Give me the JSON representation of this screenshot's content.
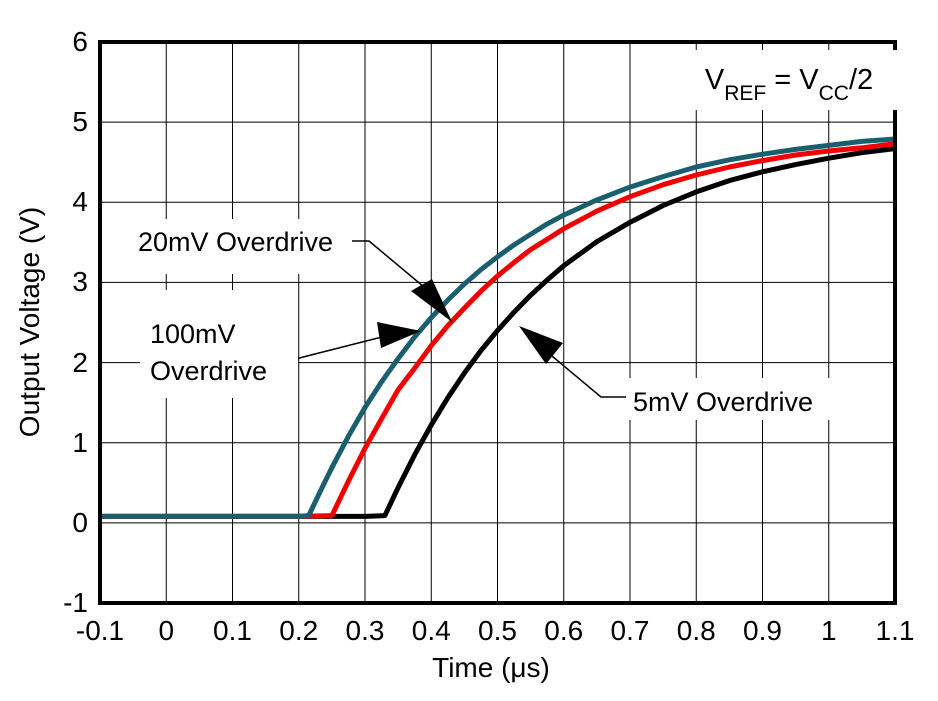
{
  "chart_data": {
    "type": "line",
    "title": "",
    "xlabel": "Time (μs)",
    "ylabel": "Output Voltage (V)",
    "xlim": [
      -0.1,
      1.1
    ],
    "ylim": [
      -1,
      6
    ],
    "x_ticks": [
      -0.1,
      0,
      0.1,
      0.2,
      0.3,
      0.4,
      0.5,
      0.6,
      0.7,
      0.8,
      0.9,
      1,
      1.1
    ],
    "x_tick_labels": [
      "-0.1",
      "0",
      "0.1",
      "0.2",
      "0.3",
      "0.4",
      "0.5",
      "0.6",
      "0.7",
      "0.8",
      "0.9",
      "1",
      "1.1"
    ],
    "y_ticks": [
      6,
      5,
      4,
      3,
      2,
      1,
      0,
      -1
    ],
    "y_tick_labels": [
      "6",
      "5",
      "4",
      "3",
      "2",
      "1",
      "0",
      "-1"
    ],
    "grid": true,
    "frame_color": "#000000",
    "grid_color": "#000000",
    "draw_order_note": "series listed bottom-to-top",
    "series": [
      {
        "name": "5mV Overdrive",
        "color": "#000000",
        "points": [
          [
            -0.1,
            0.08
          ],
          [
            0,
            0.08
          ],
          [
            0.1,
            0.08
          ],
          [
            0.2,
            0.08
          ],
          [
            0.3,
            0.08
          ],
          [
            0.33,
            0.09
          ],
          [
            0.35,
            0.44
          ],
          [
            0.375,
            0.85
          ],
          [
            0.4,
            1.22
          ],
          [
            0.425,
            1.56
          ],
          [
            0.45,
            1.87
          ],
          [
            0.475,
            2.15
          ],
          [
            0.5,
            2.4
          ],
          [
            0.525,
            2.63
          ],
          [
            0.55,
            2.84
          ],
          [
            0.575,
            3.03
          ],
          [
            0.6,
            3.21
          ],
          [
            0.65,
            3.51
          ],
          [
            0.7,
            3.75
          ],
          [
            0.75,
            3.96
          ],
          [
            0.8,
            4.13
          ],
          [
            0.85,
            4.27
          ],
          [
            0.9,
            4.38
          ],
          [
            0.95,
            4.47
          ],
          [
            1,
            4.55
          ],
          [
            1.05,
            4.62
          ],
          [
            1.1,
            4.67
          ]
        ]
      },
      {
        "name": "20mV Overdrive",
        "color": "#F20000",
        "points": [
          [
            -0.1,
            0.08
          ],
          [
            0,
            0.08
          ],
          [
            0.1,
            0.08
          ],
          [
            0.2,
            0.08
          ],
          [
            0.25,
            0.09
          ],
          [
            0.275,
            0.52
          ],
          [
            0.3,
            0.93
          ],
          [
            0.325,
            1.3
          ],
          [
            0.35,
            1.66
          ],
          [
            0.375,
            1.93
          ],
          [
            0.4,
            2.21
          ],
          [
            0.425,
            2.46
          ],
          [
            0.45,
            2.68
          ],
          [
            0.475,
            2.89
          ],
          [
            0.5,
            3.08
          ],
          [
            0.525,
            3.25
          ],
          [
            0.55,
            3.41
          ],
          [
            0.575,
            3.54
          ],
          [
            0.6,
            3.67
          ],
          [
            0.65,
            3.89
          ],
          [
            0.7,
            4.07
          ],
          [
            0.75,
            4.22
          ],
          [
            0.8,
            4.34
          ],
          [
            0.85,
            4.44
          ],
          [
            0.9,
            4.52
          ],
          [
            0.95,
            4.59
          ],
          [
            1,
            4.64
          ],
          [
            1.05,
            4.68
          ],
          [
            1.1,
            4.73
          ]
        ]
      },
      {
        "name": "100mV Overdrive",
        "color": "#1A5F6E",
        "points": [
          [
            -0.1,
            0.08
          ],
          [
            0,
            0.08
          ],
          [
            0.1,
            0.08
          ],
          [
            0.2,
            0.08
          ],
          [
            0.215,
            0.09
          ],
          [
            0.2375,
            0.48
          ],
          [
            0.25,
            0.69
          ],
          [
            0.275,
            1.08
          ],
          [
            0.3,
            1.44
          ],
          [
            0.325,
            1.76
          ],
          [
            0.35,
            2.05
          ],
          [
            0.375,
            2.32
          ],
          [
            0.4,
            2.56
          ],
          [
            0.425,
            2.78
          ],
          [
            0.45,
            2.98
          ],
          [
            0.475,
            3.16
          ],
          [
            0.5,
            3.32
          ],
          [
            0.525,
            3.47
          ],
          [
            0.55,
            3.6
          ],
          [
            0.575,
            3.73
          ],
          [
            0.6,
            3.84
          ],
          [
            0.65,
            4.03
          ],
          [
            0.7,
            4.19
          ],
          [
            0.75,
            4.32
          ],
          [
            0.8,
            4.44
          ],
          [
            0.85,
            4.53
          ],
          [
            0.9,
            4.6
          ],
          [
            0.95,
            4.66
          ],
          [
            1,
            4.71
          ],
          [
            1.05,
            4.76
          ],
          [
            1.1,
            4.79
          ]
        ]
      }
    ],
    "annotations": [
      {
        "id": "label-20mv",
        "text": "20mV Overdrive",
        "targets_series": "20mV Overdrive"
      },
      {
        "id": "label-100mv",
        "text_line1": "100mV",
        "text_line2": "Overdrive",
        "targets_series": "100mV Overdrive"
      },
      {
        "id": "label-5mv",
        "text": "5mV Overdrive",
        "targets_series": "5mV Overdrive"
      }
    ],
    "vref": {
      "text_plain": "VREF = VCC/2",
      "p1": "V",
      "s1": "REF",
      "p2": " = V",
      "s2": "CC",
      "p3": "/2"
    }
  }
}
